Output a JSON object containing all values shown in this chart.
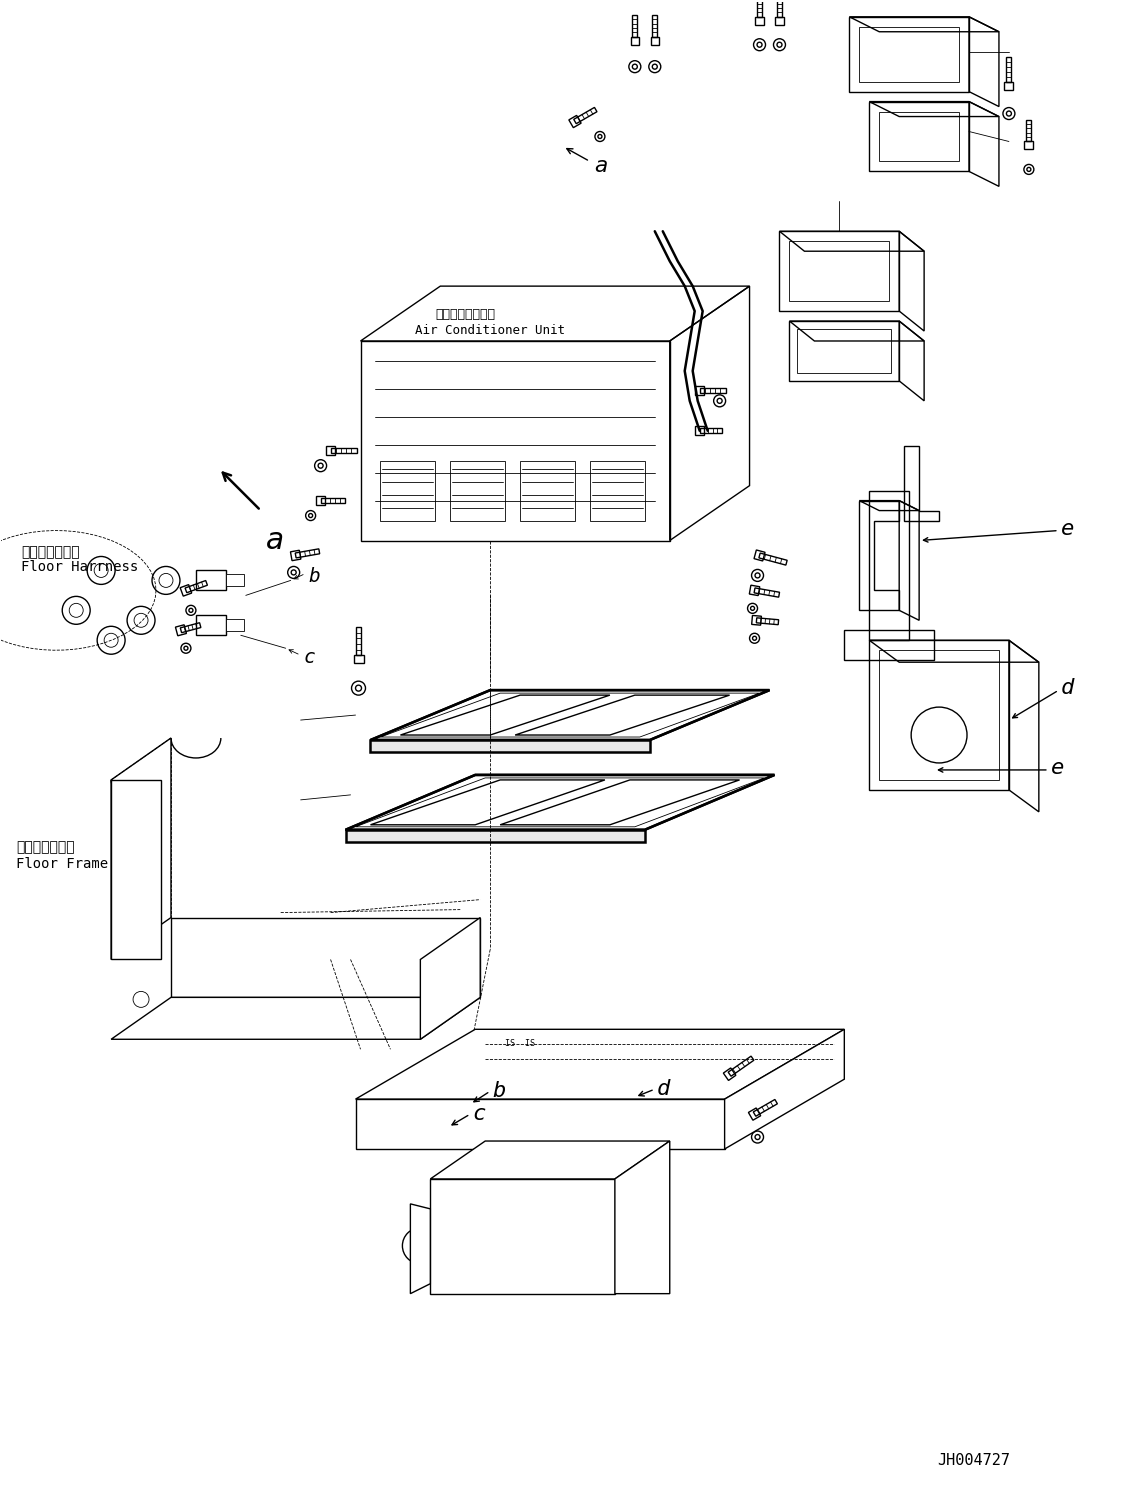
{
  "background_color": "#ffffff",
  "line_color": "#000000",
  "fig_width": 11.35,
  "fig_height": 14.91,
  "dpi": 100,
  "part_code": "JH004727",
  "lw_thin": 0.6,
  "lw_med": 1.0,
  "lw_thick": 1.8,
  "lw_bold": 2.5,
  "labels": {
    "floor_harness_jp": "フロアハーネス",
    "floor_harness_en": "Floor Harrness",
    "floor_frame_jp": "フロアフレーム",
    "floor_frame_en": "Floor Frame",
    "ac_unit_jp": "エアコンユニット",
    "ac_unit_en": "Air Conditioner Unit"
  }
}
